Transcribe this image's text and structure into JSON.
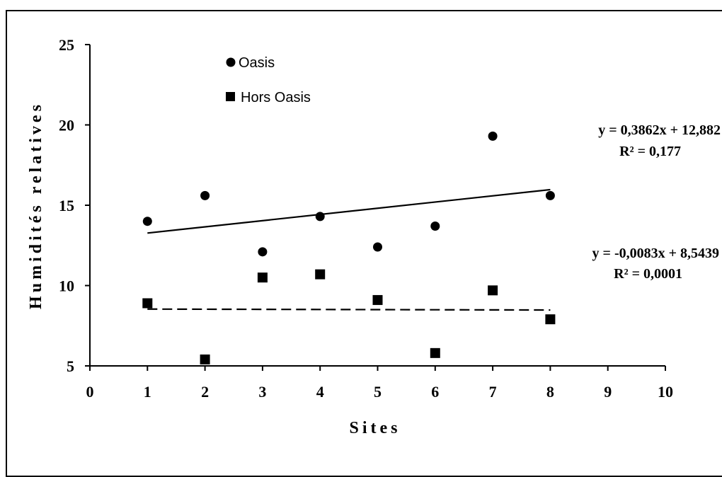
{
  "chart_data": {
    "type": "scatter",
    "xlabel": "Sites",
    "ylabel": "Humidités relatives",
    "xlim": [
      0,
      10
    ],
    "ylim": [
      5,
      25
    ],
    "xticks": [
      0,
      1,
      2,
      3,
      4,
      5,
      6,
      7,
      8,
      9,
      10
    ],
    "yticks": [
      5,
      10,
      15,
      20,
      25
    ],
    "grid": false,
    "legend_position": "top-left",
    "series": [
      {
        "name": "Oasis",
        "marker": "circle",
        "x": [
          1,
          2,
          3,
          4,
          5,
          6,
          7,
          8
        ],
        "y": [
          14.0,
          15.6,
          12.1,
          14.3,
          12.4,
          13.7,
          19.3,
          15.6
        ],
        "trendline": {
          "style": "solid",
          "slope": 0.3862,
          "intercept": 12.882,
          "equation": "y = 0,3862x + 12,882",
          "r2": "R² = 0,177"
        }
      },
      {
        "name": "Hors Oasis",
        "marker": "square",
        "x": [
          1,
          2,
          3,
          4,
          5,
          6,
          7,
          8
        ],
        "y": [
          8.9,
          5.4,
          10.5,
          10.7,
          9.1,
          5.8,
          9.7,
          7.9
        ],
        "trendline": {
          "style": "dashed",
          "slope": -0.0083,
          "intercept": 8.5439,
          "equation": "y = -0,0083x + 8,5439",
          "r2": "R² = 0,0001"
        }
      }
    ],
    "colors": {
      "markers": "#000000",
      "lines": "#000000"
    }
  }
}
